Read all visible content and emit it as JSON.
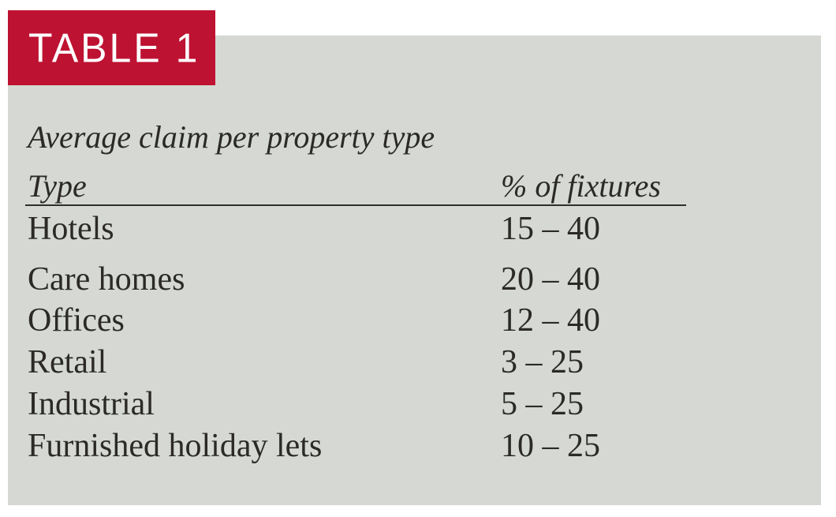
{
  "badge": {
    "label": "TABLE 1",
    "background_color": "#BE1232",
    "text_color": "#ffffff"
  },
  "panel": {
    "background_color": "#D5D8D3"
  },
  "table": {
    "title": "Average claim per property type",
    "text_color": "#2B2A26",
    "columns": [
      {
        "label": "Type"
      },
      {
        "label": "% of fixtures"
      }
    ],
    "rows": [
      {
        "type": "Hotels",
        "value": "15 – 40"
      },
      {
        "type": "Care homes",
        "value": "20 – 40"
      },
      {
        "type": "Offices",
        "value": "12 – 40"
      },
      {
        "type": "Retail",
        "value": "3 – 25"
      },
      {
        "type": "Industrial",
        "value": "5 – 25"
      },
      {
        "type": "Furnished holiday lets",
        "value": "10 – 25"
      }
    ]
  },
  "chart_data": {
    "type": "table",
    "title": "Average claim per property type",
    "columns": [
      "Type",
      "% of fixtures"
    ],
    "rows": [
      [
        "Hotels",
        "15 – 40"
      ],
      [
        "Care homes",
        "20 – 40"
      ],
      [
        "Offices",
        "12 – 40"
      ],
      [
        "Retail",
        "3 – 25"
      ],
      [
        "Industrial",
        "5 – 25"
      ],
      [
        "Furnished holiday lets",
        "10 – 25"
      ]
    ]
  }
}
